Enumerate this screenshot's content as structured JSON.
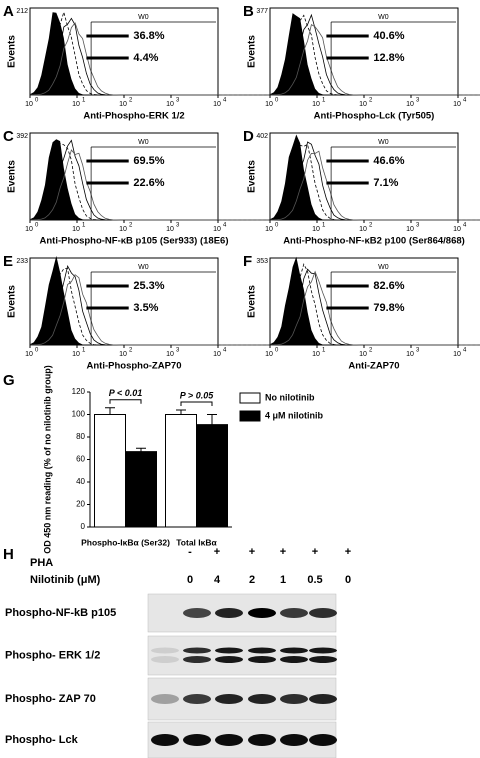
{
  "panels": [
    {
      "letter": "A",
      "ymax": "212",
      "y_label": "Events",
      "gate": "W0",
      "values": [
        "36.8%",
        "4.4%"
      ],
      "x_label": "Anti-Phospho-ERK 1/2"
    },
    {
      "letter": "B",
      "ymax": "377",
      "y_label": "Events",
      "gate": "W0",
      "values": [
        "40.6%",
        "12.8%"
      ],
      "x_label": "Anti-Phospho-Lck (Tyr505)"
    },
    {
      "letter": "C",
      "ymax": "392",
      "y_label": "Events",
      "gate": "W0",
      "values": [
        "69.5%",
        "22.6%"
      ],
      "x_label": "Anti-Phospho-NF-κB p105 (Ser933) (18E6)"
    },
    {
      "letter": "D",
      "ymax": "402",
      "y_label": "Events",
      "gate": "W0",
      "values": [
        "46.6%",
        "7.1%"
      ],
      "x_label": "Anti-Phospho-NF-κB2 p100 (Ser864/868)"
    },
    {
      "letter": "E",
      "ymax": "233",
      "y_label": "Events",
      "gate": "W0",
      "values": [
        "25.3%",
        "3.5%"
      ],
      "x_label": "Anti-Phospho-ZAP70"
    },
    {
      "letter": "F",
      "ymax": "353",
      "y_label": "Events",
      "gate": "W0",
      "values": [
        "82.6%",
        "79.8%"
      ],
      "x_label": "Anti-ZAP70"
    }
  ],
  "x_tick_base": "10",
  "x_tick_exponents": [
    "0",
    "1",
    "2",
    "3",
    "4"
  ],
  "chart_data": {
    "type": "bar",
    "letter": "G",
    "y_label": "OD 450 nm reading (% of no nilotinib group)",
    "categories": [
      "Phospho-IκBα (Ser32)",
      "Total IκBα"
    ],
    "series": [
      {
        "name": "No nilotinib",
        "color": "#ffffff",
        "values": [
          100,
          100
        ],
        "errors": [
          6,
          4
        ]
      },
      {
        "name": "4 μM nilotinib",
        "color": "#000000",
        "values": [
          67,
          91
        ],
        "errors": [
          3,
          9
        ]
      }
    ],
    "annotations": [
      "P < 0.01",
      "P > 0.05"
    ],
    "ylim": [
      0,
      120
    ],
    "yticks": [
      0,
      20,
      40,
      60,
      80,
      100,
      120
    ]
  },
  "blot": {
    "letter": "H",
    "pha_label": "PHA",
    "pha": [
      "-",
      "+",
      "+",
      "+",
      "+",
      "+"
    ],
    "dose_label": "Nilotinib (μM)",
    "doses": [
      "0",
      "4",
      "2",
      "1",
      "0.5",
      "0"
    ],
    "rows": [
      "Phospho-NF-kB p105",
      "Phospho- ERK 1/2",
      "Phospho- ZAP 70",
      "Phospho- Lck"
    ]
  }
}
